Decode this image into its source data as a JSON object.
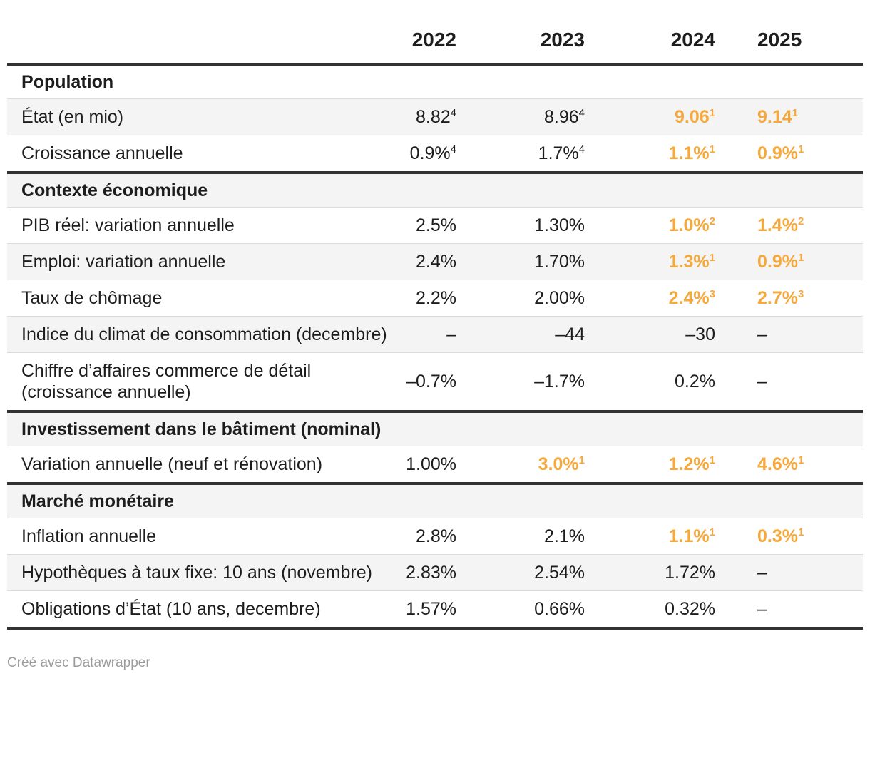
{
  "chart_data": {
    "type": "table",
    "columns": [
      "",
      "2022",
      "2023",
      "2024",
      "2025"
    ],
    "sections": [
      {
        "title": "Population",
        "rows": [
          {
            "label": "État (en mio)",
            "cells": [
              {
                "v": "8.82",
                "sup": "4",
                "hl": false
              },
              {
                "v": "8.96",
                "sup": "4",
                "hl": false
              },
              {
                "v": "9.06",
                "sup": "1",
                "hl": true
              },
              {
                "v": "9.14",
                "sup": "1",
                "hl": true
              }
            ]
          },
          {
            "label": "Croissance annuelle",
            "cells": [
              {
                "v": "0.9%",
                "sup": "4",
                "hl": false
              },
              {
                "v": "1.7%",
                "sup": "4",
                "hl": false
              },
              {
                "v": "1.1%",
                "sup": "1",
                "hl": true
              },
              {
                "v": "0.9%",
                "sup": "1",
                "hl": true
              }
            ]
          }
        ]
      },
      {
        "title": "Contexte économique",
        "rows": [
          {
            "label": "PIB réel: variation annuelle",
            "cells": [
              {
                "v": "2.5%",
                "sup": "",
                "hl": false
              },
              {
                "v": "1.30%",
                "sup": "",
                "hl": false
              },
              {
                "v": "1.0%",
                "sup": "2",
                "hl": true
              },
              {
                "v": "1.4%",
                "sup": "2",
                "hl": true
              }
            ]
          },
          {
            "label": "Emploi: variation annuelle",
            "cells": [
              {
                "v": "2.4%",
                "sup": "",
                "hl": false
              },
              {
                "v": "1.70%",
                "sup": "",
                "hl": false
              },
              {
                "v": "1.3%",
                "sup": "1",
                "hl": true
              },
              {
                "v": "0.9%",
                "sup": "1",
                "hl": true
              }
            ]
          },
          {
            "label": "Taux de chômage",
            "cells": [
              {
                "v": "2.2%",
                "sup": "",
                "hl": false
              },
              {
                "v": "2.00%",
                "sup": "",
                "hl": false
              },
              {
                "v": "2.4%",
                "sup": "3",
                "hl": true
              },
              {
                "v": "2.7%",
                "sup": "3",
                "hl": true
              }
            ]
          },
          {
            "label": "Indice du climat de consommation (decembre)",
            "cells": [
              {
                "v": "–",
                "sup": "",
                "hl": false
              },
              {
                "v": "–44",
                "sup": "",
                "hl": false
              },
              {
                "v": "–30",
                "sup": "",
                "hl": false
              },
              {
                "v": "–",
                "sup": "",
                "hl": false
              }
            ]
          },
          {
            "label": "Chiffre d’affaires commerce de détail (croissance annuelle)",
            "cells": [
              {
                "v": "–0.7%",
                "sup": "",
                "hl": false
              },
              {
                "v": "–1.7%",
                "sup": "",
                "hl": false
              },
              {
                "v": "0.2%",
                "sup": "",
                "hl": false
              },
              {
                "v": "–",
                "sup": "",
                "hl": false
              }
            ]
          }
        ]
      },
      {
        "title": "Investissement dans le bâtiment (nominal)",
        "rows": [
          {
            "label": "Variation annuelle (neuf et rénovation)",
            "cells": [
              {
                "v": "1.00%",
                "sup": "",
                "hl": false
              },
              {
                "v": "3.0%",
                "sup": "1",
                "hl": true
              },
              {
                "v": "1.2%",
                "sup": "1",
                "hl": true
              },
              {
                "v": "4.6%",
                "sup": "1",
                "hl": true
              }
            ]
          }
        ]
      },
      {
        "title": "Marché monétaire",
        "rows": [
          {
            "label": "Inflation annuelle",
            "cells": [
              {
                "v": "2.8%",
                "sup": "",
                "hl": false
              },
              {
                "v": "2.1%",
                "sup": "",
                "hl": false
              },
              {
                "v": "1.1%",
                "sup": "1",
                "hl": true
              },
              {
                "v": "0.3%",
                "sup": "1",
                "hl": true
              }
            ]
          },
          {
            "label": "Hypothèques à taux fixe: 10 ans (novembre)",
            "cells": [
              {
                "v": "2.83%",
                "sup": "",
                "hl": false
              },
              {
                "v": "2.54%",
                "sup": "",
                "hl": false
              },
              {
                "v": "1.72%",
                "sup": "",
                "hl": false
              },
              {
                "v": "–",
                "sup": "",
                "hl": false
              }
            ]
          },
          {
            "label": "Obligations d’État (10 ans, decembre)",
            "cells": [
              {
                "v": "1.57%",
                "sup": "",
                "hl": false
              },
              {
                "v": "0.66%",
                "sup": "",
                "hl": false
              },
              {
                "v": "0.32%",
                "sup": "",
                "hl": false
              },
              {
                "v": "–",
                "sup": "",
                "hl": false
              }
            ]
          }
        ]
      }
    ],
    "layout_hints": {
      "year_columns_alignment": [
        "right",
        "right",
        "right",
        "left"
      ],
      "striped_rows": true
    }
  },
  "footer": {
    "credit": "Créé avec Datawrapper"
  },
  "colors": {
    "highlight": "#F5A83B",
    "text": "#1d1d1d",
    "stripe": "#f4f4f4",
    "rule": "#dcdcdc",
    "thick_border": "#323232",
    "credit_text": "#9b9b9b",
    "background": "#ffffff"
  }
}
